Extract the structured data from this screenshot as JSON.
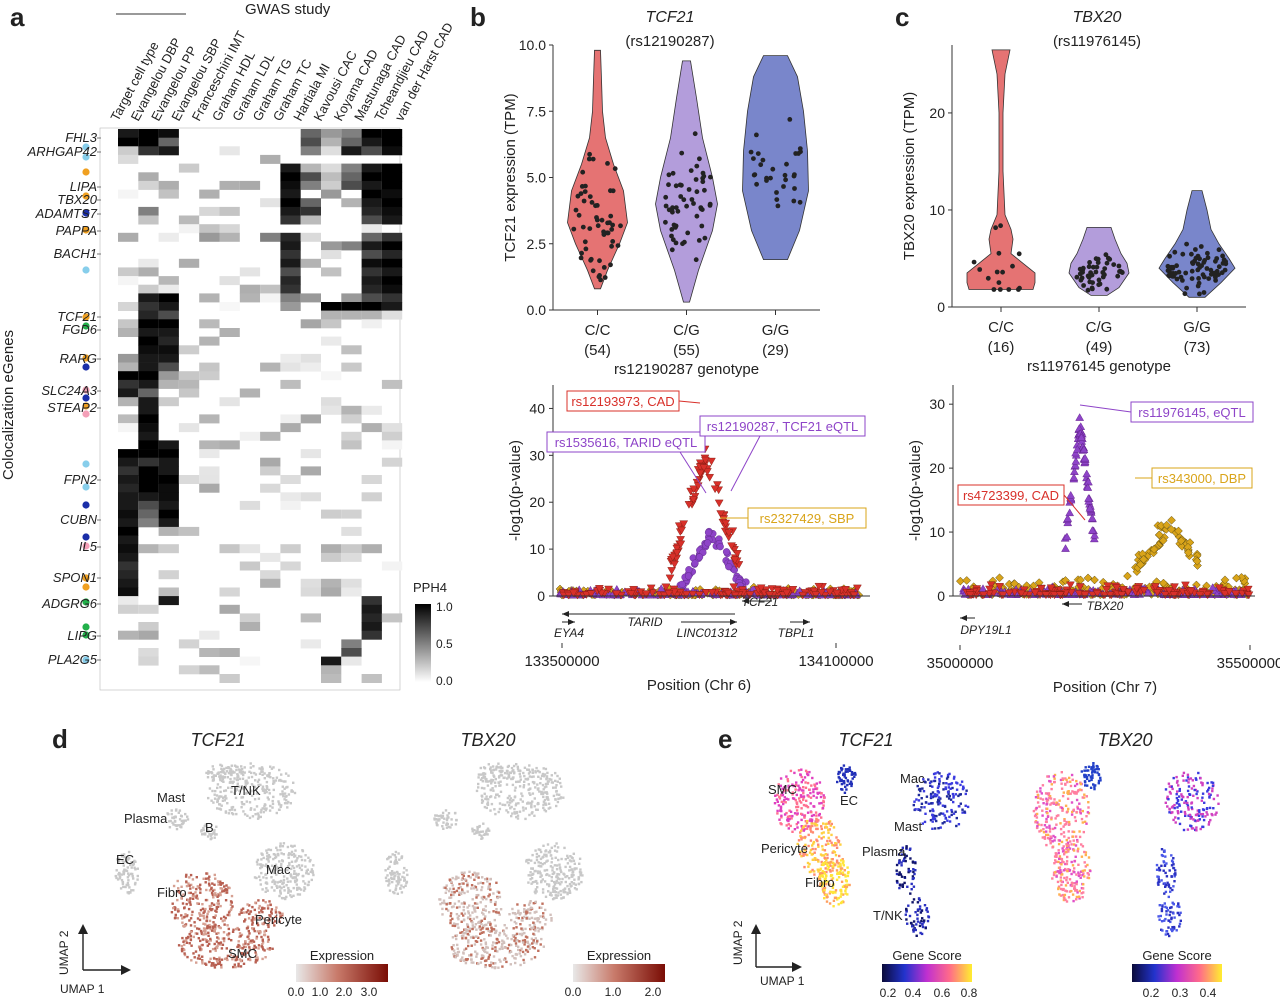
{
  "panel_labels": {
    "a": "a",
    "b": "b",
    "c": "c",
    "d": "d",
    "e": "e"
  },
  "panel_a": {
    "study_header": "GWAS study",
    "columns": [
      "Target cell type",
      "Evangelou DBP",
      "Evangelou PP",
      "Evangelou SBP",
      "Franceschini IMT",
      "Graham HDL",
      "Graham LDL",
      "Graham TG",
      "Graham TC",
      "Hartiala MI",
      "Kavousi CAC",
      "Koyama CAD",
      "Mastunaga CAD",
      "Tcheandjieu CAD",
      "van der Harst CAD"
    ],
    "y_axis_label": "Colocalization eGenes",
    "gene_labels": [
      "FHL3",
      "ARHGAP42",
      "LIPA",
      "TBX20",
      "ADAMTS7",
      "PAPPA",
      "BACH1",
      "TCF21",
      "FGD6",
      "RARG",
      "SLC24A3",
      "STEAP2",
      "FPN2",
      "CUBN",
      "IL5",
      "SPON1",
      "ADGRG6",
      "LIPG",
      "PLA2G5"
    ],
    "legend_title": "PPH4",
    "legend_ticks": [
      "1.0",
      "0.5",
      "0.0"
    ],
    "cell_type_colors": {
      "light_blue": "#87ceeb",
      "orange": "#f0a020",
      "dark_blue": "#1a2ea8",
      "green": "#22b04a",
      "pink": "#f4a0b8"
    }
  },
  "chart_data": [
    {
      "type": "violin",
      "panel": "b",
      "title": "TCF21",
      "subtitle": "(rs12190287)",
      "ylabel": "TCF21 expression (TPM)",
      "xlabel": "rs12190287 genotype",
      "categories": [
        "C/C",
        "C/G",
        "G/G"
      ],
      "counts": [
        "(54)",
        "(55)",
        "(29)"
      ],
      "colors": [
        "#e57373",
        "#b39ddb",
        "#7986cb"
      ],
      "ylim": [
        0,
        10
      ],
      "yticks": [
        "0.0",
        "2.5",
        "5.0",
        "7.5",
        "10.0"
      ],
      "medians": [
        3.3,
        3.9,
        5.0
      ]
    },
    {
      "type": "violin",
      "panel": "c",
      "title": "TBX20",
      "subtitle": "(rs11976145)",
      "ylabel": "TBX20 expression (TPM)",
      "xlabel": "rs11976145 genotype",
      "categories": [
        "C/C",
        "C/G",
        "G/G"
      ],
      "counts": [
        "(16)",
        "(49)",
        "(73)"
      ],
      "colors": [
        "#e57373",
        "#b39ddb",
        "#7986cb"
      ],
      "ylim": [
        0,
        27
      ],
      "yticks": [
        "0",
        "10",
        "20"
      ],
      "medians": [
        3.2,
        3.5,
        4.0
      ]
    },
    {
      "type": "scatter",
      "panel": "b-locus",
      "ylabel": "-log10(p-value)",
      "xlabel": "Position (Chr 6)",
      "xticks": [
        "133500000",
        "134100000"
      ],
      "yticks": [
        "0",
        "10",
        "20",
        "30",
        "40"
      ],
      "ylim": [
        0,
        45
      ],
      "annotations": [
        "rs12193973, CAD",
        "rs1535616, TARID eQTL",
        "rs12190287, TCF21 eQTL",
        "rs2327429, SBP"
      ],
      "genes": [
        "TCF21",
        "EYA4",
        "TARID",
        "LINC01312",
        "TBPL1"
      ]
    },
    {
      "type": "scatter",
      "panel": "c-locus",
      "ylabel": "-log10(p-value)",
      "xlabel": "Position (Chr 7)",
      "xticks": [
        "35000000",
        "35500000"
      ],
      "yticks": [
        "0",
        "10",
        "20",
        "30"
      ],
      "ylim": [
        0,
        33
      ],
      "annotations": [
        "rs11976145, eQTL",
        "rs343000, DBP",
        "rs4723399, CAD"
      ],
      "genes": [
        "TBX20",
        "DPY19L1"
      ]
    }
  ],
  "panel_d": {
    "title_left": "TCF21",
    "title_right": "TBX20",
    "cluster_labels": [
      "Mast",
      "T/NK",
      "Plasma",
      "B",
      "EC",
      "Mac",
      "Fibro",
      "Pericyte",
      "SMC"
    ],
    "umap1": "UMAP 1",
    "umap2": "UMAP 2",
    "legend_title": "Expression",
    "legend_ticks_left": [
      "0.0",
      "1.0",
      "2.0",
      "3.0"
    ],
    "legend_ticks_right": [
      "0.0",
      "1.0",
      "2.0"
    ]
  },
  "panel_e": {
    "title_left": "TCF21",
    "title_right": "TBX20",
    "cluster_labels": [
      "SMC",
      "EC",
      "Mac",
      "Mast",
      "Plasma",
      "Pericyte",
      "Fibro",
      "T/NK"
    ],
    "umap1": "UMAP 1",
    "umap2": "UMAP 2",
    "legend_title": "Gene Score",
    "legend_ticks_left": [
      "0.2",
      "0.4",
      "0.6",
      "0.8"
    ],
    "legend_ticks_right": [
      "0.2",
      "0.3",
      "0.4"
    ]
  }
}
